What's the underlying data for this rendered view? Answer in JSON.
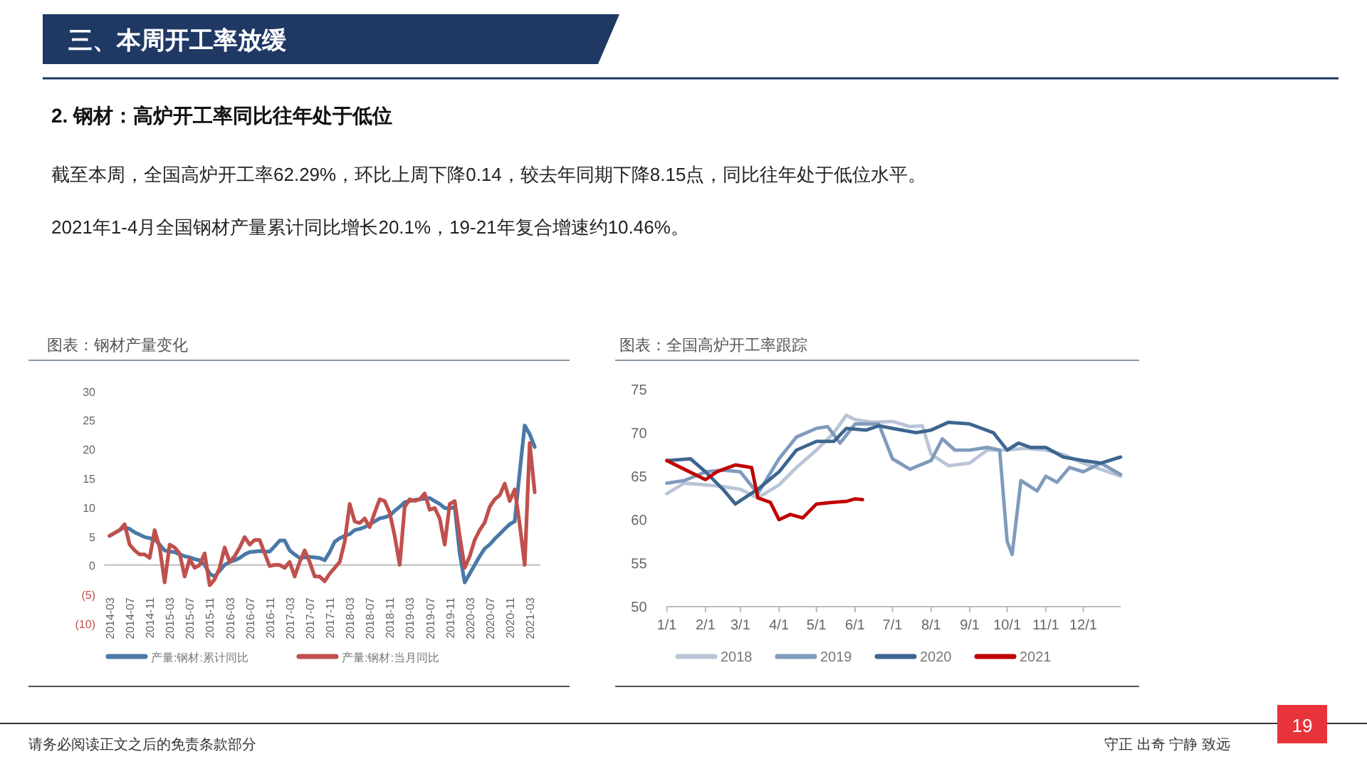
{
  "chart_data": [
    {
      "type": "line",
      "title": "图表：钢材产量变化",
      "annotations": [
        "三、本周开工率放缓",
        "2. 钢材：高炉开工率同比往年处于低位",
        "截至本周，全国高炉开工率62.29%，环比上周下降0.14，较去年同期下降8.15点，同比往年处于低位水平。",
        "2021年1-4月全国钢材产量累计同比增长20.1%，19-21年复合增速约10.46%。",
        "请务必阅读正文之后的免责条款部分",
        "守正 出奇 宁静 致远",
        "19"
      ],
      "categories": [
        "2014-03",
        null,
        null,
        null,
        "2014-07",
        null,
        null,
        null,
        "2014-11",
        null,
        null,
        null,
        "2015-03",
        null,
        null,
        null,
        "2015-07",
        null,
        null,
        null,
        "2015-11",
        null,
        null,
        null,
        "2016-03",
        null,
        null,
        null,
        "2016-07",
        null,
        null,
        null,
        "2016-11",
        null,
        null,
        null,
        "2017-03",
        null,
        null,
        null,
        "2017-07",
        null,
        null,
        null,
        "2017-11",
        null,
        null,
        null,
        "2018-03",
        null,
        null,
        null,
        "2018-07",
        null,
        null,
        null,
        "2018-11",
        null,
        null,
        null,
        "2019-03",
        null,
        null,
        null,
        "2019-07",
        null,
        null,
        null,
        "2019-11",
        null,
        null,
        null,
        "2020-03",
        null,
        null,
        null,
        "2020-07",
        null,
        null,
        null,
        "2020-11",
        null,
        null,
        null,
        "2021-03",
        null
      ],
      "series": [
        {
          "name": "产量:钢材:累计同比",
          "color": "#4a78a8",
          "values": [
            5,
            5.5,
            6,
            6.5,
            6.2,
            5.6,
            5.2,
            4.8,
            4.6,
            4.4,
            3.5,
            2.5,
            2.3,
            2.2,
            1.8,
            1.5,
            1.3,
            1,
            0.8,
            0,
            -1.5,
            -2,
            -1,
            0,
            0.5,
            0.8,
            1.2,
            1.8,
            2.2,
            2.3,
            2.4,
            2.3,
            2.3,
            3.2,
            4.2,
            4.2,
            2.5,
            1.8,
            1.2,
            1.3,
            1.4,
            1.3,
            1.2,
            0.8,
            2.2,
            4,
            4.6,
            5,
            5.3,
            6,
            6.2,
            6.5,
            7,
            7.5,
            8,
            8.2,
            8.5,
            9.3,
            10,
            10.8,
            11,
            11.2,
            11.3,
            11.4,
            11.5,
            11,
            10.5,
            9.8,
            9.7,
            10,
            2,
            -3,
            -1.5,
            0,
            1.5,
            2.8,
            3.5,
            4.5,
            5.3,
            6.2,
            7,
            7.5,
            16,
            24,
            22.5,
            20.3
          ]
        },
        {
          "name": "产量:钢材:当月同比",
          "color": "#c0504d",
          "values": [
            5,
            5.5,
            6,
            7,
            3.5,
            2.5,
            1.8,
            1.8,
            1.2,
            6,
            3,
            -3,
            3.5,
            3,
            2,
            -2,
            1,
            -0.5,
            0,
            2,
            -3.5,
            -2.5,
            -0.5,
            3,
            0.5,
            1.5,
            3,
            4.8,
            3.5,
            4.3,
            4.3,
            2,
            -0.2,
            0,
            0,
            -0.5,
            0.5,
            -2,
            0.5,
            2.5,
            0.5,
            -2,
            -2,
            -2.8,
            -1.5,
            -0.5,
            0.5,
            4,
            10.5,
            7.5,
            7.2,
            8,
            6.5,
            9,
            11.3,
            11,
            9,
            5,
            0,
            10,
            11.3,
            11,
            11.3,
            12.3,
            9.5,
            9.8,
            8,
            3.5,
            10.5,
            11,
            5,
            -0.5,
            1.5,
            4.3,
            6,
            7.3,
            10,
            11.3,
            12,
            14,
            11,
            13,
            7,
            0,
            21,
            12.5
          ]
        }
      ],
      "ylim": [
        -10,
        30
      ],
      "yticks": [
        {
          "value": -10,
          "label": "(10)"
        },
        {
          "value": -5,
          "label": "(5)"
        },
        0,
        5,
        10,
        15,
        20,
        25,
        30
      ],
      "legend": "bottom"
    },
    {
      "type": "line",
      "title": "图表：全国高炉开工率跟踪",
      "xlim": [
        "--01-01",
        "--12-31"
      ],
      "xticks": [
        {
          "value": "--01-01",
          "label": "1/1"
        },
        {
          "value": "--02-01",
          "label": "2/1"
        },
        {
          "value": "--03-01",
          "label": "3/1"
        },
        {
          "value": "--04-01",
          "label": "4/1"
        },
        {
          "value": "--05-01",
          "label": "5/1"
        },
        {
          "value": "--06-01",
          "label": "6/1"
        },
        {
          "value": "--07-01",
          "label": "7/1"
        },
        {
          "value": "--08-01",
          "label": "8/1"
        },
        {
          "value": "--09-01",
          "label": "9/1"
        },
        {
          "value": "--10-01",
          "label": "10/1"
        },
        {
          "value": "--11-01",
          "label": "11/1"
        },
        {
          "value": "--12-01",
          "label": "12/1"
        }
      ],
      "ylim": [
        50,
        75
      ],
      "yticks": [
        50,
        55,
        60,
        65,
        70,
        75
      ],
      "series": [
        {
          "name": "2018",
          "color": "#b9c5d6",
          "x": [
            "--01-01",
            "--01-15",
            "--02-01",
            "--02-15",
            "--03-01",
            "--03-15",
            "--04-01",
            "--04-15",
            "--05-01",
            "--05-15",
            "--05-25",
            "--06-01",
            "--06-15",
            "--07-01",
            "--07-15",
            "--07-25",
            "--08-01",
            "--08-15",
            "--09-01",
            "--09-15",
            "--10-01",
            "--10-15",
            "--11-01",
            "--11-15",
            "--12-01",
            "--12-15",
            "--12-31"
          ],
          "values": [
            63,
            64.2,
            64,
            63.8,
            63.5,
            62.5,
            64,
            66,
            68,
            70,
            72,
            71.5,
            71.2,
            71.3,
            70.7,
            70.8,
            67.5,
            66.2,
            66.5,
            68,
            68,
            68.2,
            68,
            67.5,
            66.5,
            65.8,
            65
          ]
        },
        {
          "name": "2019",
          "color": "#7f9bbd",
          "x": [
            "--01-01",
            "--01-15",
            "--02-01",
            "--02-15",
            "--03-01",
            "--03-15",
            "--04-01",
            "--04-15",
            "--05-01",
            "--05-10",
            "--05-20",
            "--06-01",
            "--06-20",
            "--07-01",
            "--07-15",
            "--08-01",
            "--08-10",
            "--08-20",
            "--09-01",
            "--09-15",
            "--09-25",
            "--10-01",
            "--10-05",
            "--10-12",
            "--10-25",
            "--11-01",
            "--11-10",
            "--11-20",
            "--12-01",
            "--12-15",
            "--12-31"
          ],
          "values": [
            64.2,
            64.5,
            65.5,
            65.7,
            65.5,
            63,
            67,
            69.5,
            70.5,
            70.7,
            68.8,
            71,
            71,
            67,
            65.8,
            66.8,
            69.3,
            68,
            68,
            68.3,
            68,
            57.5,
            56,
            64.5,
            63.3,
            65,
            64.3,
            66,
            65.5,
            66.5,
            65.2
          ]
        },
        {
          "name": "2020",
          "color": "#3d6590",
          "x": [
            "--01-01",
            "--01-20",
            "--02-01",
            "--02-15",
            "--02-25",
            "--03-15",
            "--04-01",
            "--04-15",
            "--05-01",
            "--05-15",
            "--05-25",
            "--06-10",
            "--06-20",
            "--07-01",
            "--07-20",
            "--08-01",
            "--08-15",
            "--09-01",
            "--09-20",
            "--10-01",
            "--10-10",
            "--10-20",
            "--11-01",
            "--11-15",
            "--12-01",
            "--12-15",
            "--12-31"
          ],
          "values": [
            66.8,
            67,
            65.5,
            63.5,
            61.8,
            63.5,
            65.5,
            68,
            69,
            69,
            70.5,
            70.3,
            70.8,
            70.5,
            70,
            70.3,
            71.2,
            71,
            70,
            68,
            68.8,
            68.3,
            68.3,
            67.2,
            66.8,
            66.5,
            67.2
          ]
        },
        {
          "name": "2021",
          "color": "#c00000",
          "x": [
            "--01-01",
            "--01-15",
            "--02-01",
            "--02-10",
            "--02-25",
            "--03-10",
            "--03-15",
            "--03-25",
            "--04-01",
            "--04-10",
            "--04-20",
            "--05-01",
            "--05-15",
            "--05-25",
            "--06-01",
            "--06-07"
          ],
          "values": [
            66.8,
            65.8,
            64.6,
            65.5,
            66.3,
            66,
            62.5,
            62,
            60,
            60.6,
            60.2,
            61.8,
            62,
            62.1,
            62.4,
            62.3
          ]
        }
      ],
      "legend": "bottom"
    }
  ]
}
